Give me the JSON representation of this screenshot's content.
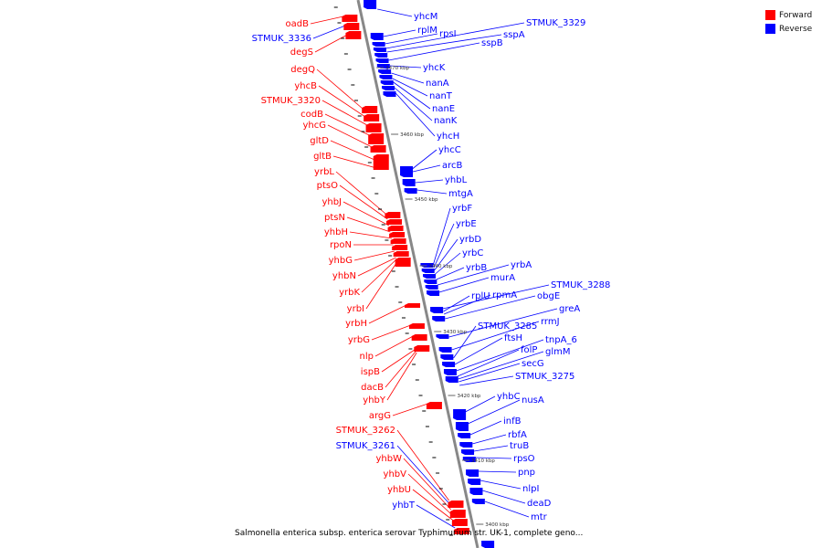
{
  "legend": {
    "forward_label": "Forward",
    "reverse_label": "Reverse",
    "forward_color": "#ff0000",
    "reverse_color": "#0000ff"
  },
  "caption": "Salmonella enterica subsp. enterica serovar Typhimurium str. UK-1, complete geno...",
  "backbone_color": "#888888",
  "scale_labels": [
    "3400 kbp",
    "3410 kbp",
    "3420 kbp",
    "3430 kbp",
    "3440 kbp",
    "3450 kbp",
    "3460 kbp",
    "3470 kbp"
  ],
  "forward_labels": [
    "oadB",
    "STMUK_3336",
    "degS",
    "degQ",
    "yhcB",
    "STMUK_3320",
    "codB",
    "yhcG",
    "gltD",
    "gltB",
    "yrbL",
    "ptsO",
    "yhbJ",
    "ptsN",
    "yhbH",
    "rpoN",
    "yhbG",
    "yhbN",
    "yrbK",
    "yrbI",
    "yrbH",
    "yrbG",
    "nlp",
    "ispB",
    "dacB",
    "yhbY",
    "argG",
    "STMUK_3262",
    "STMUK_3261",
    "yhbW",
    "yhbV",
    "yhbU",
    "yhbT"
  ],
  "reverse_labels": [
    "yhcM",
    "rplM",
    "rpsI",
    "STMUK_3329",
    "sspA",
    "sspB",
    "yhcK",
    "nanA",
    "nanT",
    "nanE",
    "nanK",
    "yhcH",
    "yhcC",
    "arcB",
    "yhbL",
    "mtgA",
    "yrbF",
    "yrbE",
    "yrbD",
    "yrbC",
    "yrbB",
    "yrbA",
    "murA",
    "STMUK_3288",
    "rplU",
    "rpmA",
    "obgE",
    "greA",
    "rrmJ",
    "STMUK_3285",
    "ftsH",
    "tnpA_6",
    "folP",
    "glmM",
    "secG",
    "STMUK_3275",
    "yhbC",
    "nusA",
    "infB",
    "rbfA",
    "truB",
    "rpsO",
    "pnp",
    "nlpI",
    "deaD",
    "mtr"
  ]
}
